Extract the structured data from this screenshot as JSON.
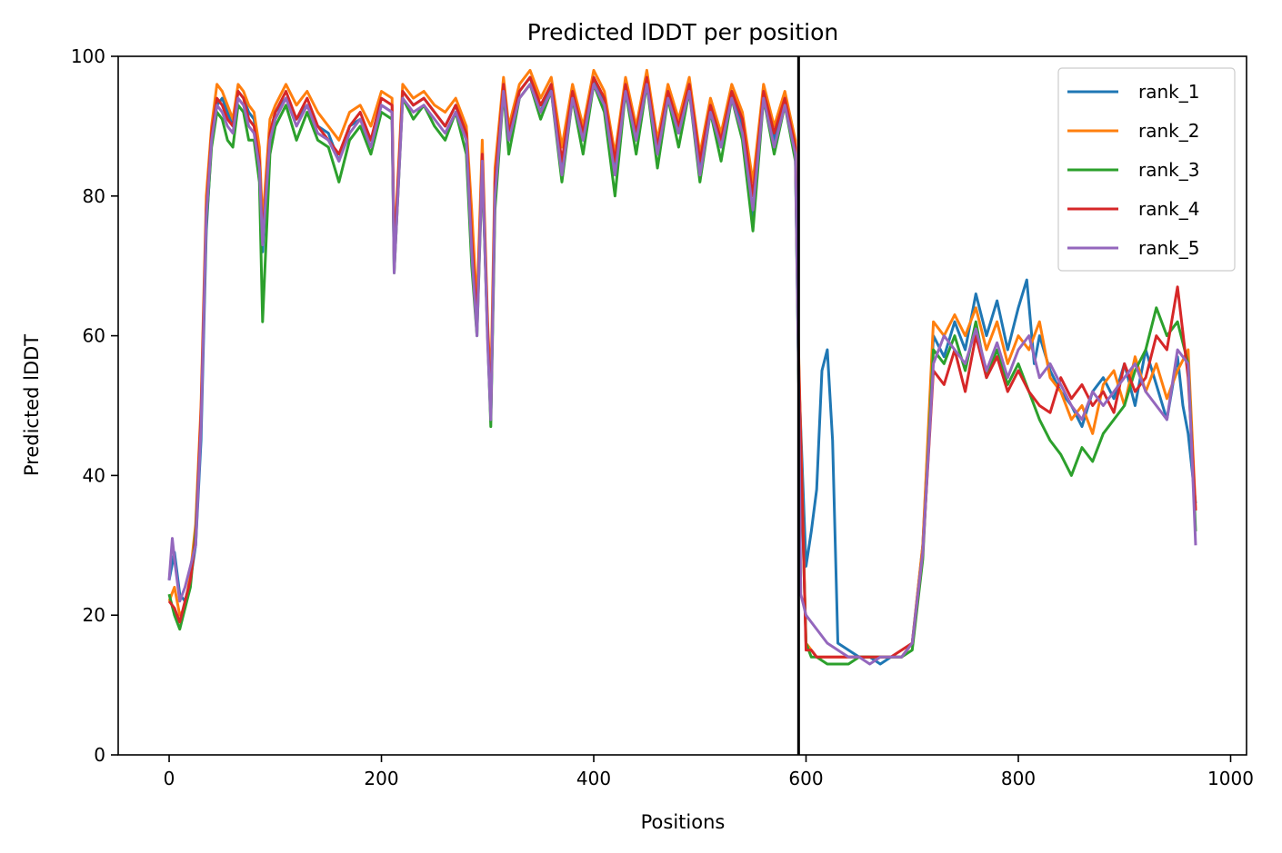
{
  "chart_data": {
    "type": "line",
    "title": "Predicted lDDT per position",
    "xlabel": "Positions",
    "ylabel": "Predicted lDDT",
    "xlim": [
      -48,
      1015
    ],
    "ylim": [
      0,
      100
    ],
    "xticks": [
      0,
      200,
      400,
      600,
      800,
      1000
    ],
    "yticks": [
      0,
      20,
      40,
      60,
      80,
      100
    ],
    "grid": false,
    "legend_position": "top-right",
    "chain_break": 593,
    "series": [
      {
        "name": "rank_1",
        "color": "#1f77b4",
        "x": [
          0,
          5,
          10,
          15,
          20,
          25,
          30,
          35,
          40,
          45,
          50,
          55,
          60,
          65,
          70,
          75,
          80,
          85,
          88,
          95,
          100,
          110,
          120,
          130,
          140,
          150,
          160,
          170,
          180,
          190,
          200,
          210,
          212,
          220,
          230,
          240,
          250,
          260,
          270,
          280,
          285,
          290,
          295,
          300,
          303,
          307,
          315,
          320,
          330,
          340,
          350,
          360,
          370,
          380,
          390,
          400,
          410,
          420,
          430,
          440,
          450,
          460,
          470,
          480,
          490,
          500,
          510,
          520,
          530,
          540,
          550,
          560,
          570,
          580,
          590,
          593,
          600,
          605,
          610,
          615,
          620,
          625,
          630,
          640,
          650,
          660,
          670,
          680,
          690,
          700,
          710,
          720,
          730,
          740,
          750,
          760,
          770,
          780,
          790,
          800,
          808,
          815,
          820,
          830,
          840,
          850,
          860,
          870,
          880,
          890,
          900,
          910,
          920,
          930,
          940,
          950,
          955,
          960,
          967
        ],
        "y": [
          25,
          29,
          23,
          22,
          25,
          30,
          45,
          75,
          88,
          93,
          94,
          92,
          90,
          95,
          94,
          92,
          91,
          85,
          72,
          89,
          92,
          94,
          91,
          93,
          90,
          89,
          85,
          90,
          91,
          88,
          93,
          92,
          70,
          95,
          93,
          94,
          92,
          90,
          93,
          88,
          73,
          62,
          85,
          60,
          48,
          80,
          96,
          88,
          95,
          97,
          92,
          96,
          84,
          95,
          88,
          97,
          93,
          84,
          96,
          88,
          97,
          86,
          95,
          89,
          96,
          84,
          93,
          87,
          95,
          90,
          77,
          95,
          88,
          94,
          86,
          55,
          27,
          32,
          38,
          55,
          58,
          45,
          16,
          15,
          14,
          14,
          13,
          14,
          14,
          16,
          30,
          60,
          57,
          62,
          58,
          66,
          60,
          65,
          58,
          64,
          68,
          56,
          60,
          55,
          52,
          50,
          47,
          52,
          54,
          51,
          56,
          50,
          58,
          53,
          48,
          57,
          50,
          46,
          36
        ]
      },
      {
        "name": "rank_2",
        "color": "#ff7f0e",
        "x": [
          0,
          5,
          10,
          15,
          20,
          25,
          30,
          35,
          40,
          45,
          50,
          55,
          60,
          65,
          70,
          75,
          80,
          85,
          88,
          95,
          100,
          110,
          120,
          130,
          140,
          150,
          160,
          170,
          180,
          190,
          200,
          210,
          212,
          220,
          230,
          240,
          250,
          260,
          270,
          280,
          285,
          290,
          295,
          300,
          303,
          307,
          315,
          320,
          330,
          340,
          350,
          360,
          370,
          380,
          390,
          400,
          410,
          420,
          430,
          440,
          450,
          460,
          470,
          480,
          490,
          500,
          510,
          520,
          530,
          540,
          550,
          560,
          570,
          580,
          590,
          593,
          600,
          605,
          610,
          620,
          630,
          640,
          650,
          660,
          670,
          680,
          690,
          700,
          710,
          720,
          730,
          740,
          750,
          760,
          770,
          780,
          790,
          800,
          810,
          820,
          830,
          840,
          850,
          860,
          870,
          880,
          890,
          900,
          910,
          920,
          930,
          940,
          950,
          960,
          967
        ],
        "y": [
          22,
          24,
          20,
          21,
          26,
          33,
          50,
          80,
          90,
          96,
          95,
          93,
          91,
          96,
          95,
          93,
          92,
          87,
          76,
          91,
          93,
          96,
          93,
          95,
          92,
          90,
          88,
          92,
          93,
          90,
          95,
          94,
          72,
          96,
          94,
          95,
          93,
          92,
          94,
          90,
          78,
          64,
          88,
          62,
          52,
          84,
          97,
          90,
          96,
          98,
          94,
          97,
          87,
          96,
          90,
          98,
          95,
          86,
          97,
          90,
          98,
          88,
          96,
          91,
          97,
          86,
          94,
          89,
          96,
          92,
          82,
          96,
          90,
          95,
          88,
          58,
          16,
          15,
          14,
          14,
          14,
          14,
          14,
          14,
          14,
          14,
          14,
          16,
          30,
          62,
          60,
          63,
          60,
          64,
          58,
          62,
          56,
          60,
          58,
          62,
          54,
          52,
          48,
          50,
          46,
          53,
          55,
          50,
          57,
          52,
          56,
          51,
          55,
          58,
          35
        ]
      },
      {
        "name": "rank_3",
        "color": "#2ca02c",
        "x": [
          0,
          5,
          10,
          15,
          20,
          25,
          30,
          35,
          40,
          45,
          50,
          55,
          60,
          65,
          70,
          75,
          80,
          85,
          88,
          95,
          100,
          110,
          120,
          130,
          140,
          150,
          160,
          170,
          180,
          190,
          200,
          210,
          212,
          220,
          230,
          240,
          250,
          260,
          270,
          280,
          285,
          290,
          295,
          300,
          303,
          307,
          315,
          320,
          330,
          340,
          350,
          360,
          370,
          380,
          390,
          400,
          410,
          420,
          430,
          440,
          450,
          460,
          470,
          480,
          490,
          500,
          510,
          520,
          530,
          540,
          550,
          560,
          570,
          580,
          590,
          593,
          600,
          605,
          610,
          620,
          630,
          640,
          650,
          660,
          670,
          680,
          690,
          700,
          710,
          720,
          730,
          740,
          750,
          760,
          770,
          780,
          790,
          800,
          810,
          820,
          830,
          840,
          850,
          860,
          870,
          880,
          890,
          900,
          910,
          920,
          930,
          940,
          950,
          960,
          967
        ],
        "y": [
          23,
          20,
          18,
          21,
          24,
          32,
          48,
          76,
          87,
          92,
          91,
          88,
          87,
          93,
          92,
          88,
          88,
          82,
          62,
          86,
          90,
          93,
          88,
          92,
          88,
          87,
          82,
          88,
          90,
          86,
          92,
          91,
          69,
          94,
          91,
          93,
          90,
          88,
          92,
          86,
          70,
          60,
          84,
          60,
          47,
          78,
          95,
          86,
          94,
          96,
          91,
          95,
          82,
          94,
          86,
          96,
          92,
          80,
          95,
          86,
          96,
          84,
          94,
          87,
          95,
          82,
          92,
          85,
          94,
          88,
          75,
          94,
          86,
          93,
          85,
          54,
          16,
          14,
          14,
          13,
          13,
          13,
          14,
          14,
          14,
          14,
          14,
          15,
          28,
          58,
          56,
          60,
          55,
          62,
          54,
          58,
          53,
          56,
          52,
          48,
          45,
          43,
          40,
          44,
          42,
          46,
          48,
          50,
          55,
          58,
          64,
          60,
          62,
          56,
          32
        ]
      },
      {
        "name": "rank_4",
        "color": "#d62728",
        "x": [
          0,
          5,
          10,
          15,
          20,
          25,
          30,
          35,
          40,
          45,
          50,
          55,
          60,
          65,
          70,
          75,
          80,
          85,
          88,
          95,
          100,
          110,
          120,
          130,
          140,
          150,
          160,
          170,
          180,
          190,
          200,
          210,
          212,
          220,
          230,
          240,
          250,
          260,
          270,
          280,
          285,
          290,
          295,
          300,
          303,
          307,
          315,
          320,
          330,
          340,
          350,
          360,
          370,
          380,
          390,
          400,
          410,
          420,
          430,
          440,
          450,
          460,
          470,
          480,
          490,
          500,
          510,
          520,
          530,
          540,
          550,
          560,
          570,
          580,
          590,
          593,
          600,
          605,
          610,
          620,
          630,
          640,
          650,
          660,
          670,
          680,
          690,
          700,
          710,
          720,
          730,
          740,
          750,
          760,
          770,
          780,
          790,
          800,
          810,
          820,
          830,
          840,
          850,
          860,
          870,
          880,
          890,
          900,
          910,
          920,
          930,
          940,
          950,
          960,
          967
        ],
        "y": [
          22,
          21,
          19,
          22,
          25,
          31,
          49,
          78,
          89,
          94,
          93,
          91,
          90,
          95,
          94,
          91,
          90,
          85,
          74,
          89,
          92,
          95,
          91,
          94,
          90,
          88,
          86,
          90,
          92,
          88,
          94,
          93,
          71,
          95,
          93,
          94,
          92,
          90,
          93,
          89,
          74,
          62,
          86,
          61,
          49,
          82,
          96,
          89,
          95,
          97,
          93,
          96,
          85,
          95,
          89,
          97,
          94,
          85,
          96,
          89,
          97,
          87,
          95,
          90,
          96,
          85,
          93,
          88,
          95,
          91,
          80,
          95,
          89,
          94,
          87,
          57,
          15,
          15,
          14,
          14,
          14,
          14,
          14,
          14,
          14,
          14,
          15,
          16,
          29,
          55,
          53,
          58,
          52,
          60,
          54,
          57,
          52,
          55,
          52,
          50,
          49,
          54,
          51,
          53,
          50,
          52,
          49,
          56,
          52,
          54,
          60,
          58,
          67,
          54,
          35
        ]
      },
      {
        "name": "rank_5",
        "color": "#9467bd",
        "x": [
          0,
          3,
          5,
          10,
          15,
          20,
          25,
          30,
          35,
          40,
          45,
          50,
          55,
          60,
          65,
          70,
          75,
          80,
          85,
          88,
          95,
          100,
          110,
          120,
          130,
          140,
          150,
          160,
          170,
          180,
          190,
          200,
          210,
          212,
          220,
          230,
          240,
          250,
          260,
          270,
          280,
          285,
          290,
          295,
          300,
          303,
          307,
          315,
          320,
          330,
          340,
          350,
          360,
          370,
          380,
          390,
          400,
          410,
          420,
          430,
          440,
          450,
          460,
          470,
          480,
          490,
          500,
          510,
          520,
          530,
          540,
          550,
          560,
          570,
          580,
          590,
          593,
          595,
          600,
          605,
          610,
          620,
          630,
          640,
          650,
          660,
          670,
          680,
          690,
          700,
          710,
          720,
          730,
          740,
          750,
          760,
          770,
          780,
          790,
          800,
          810,
          820,
          830,
          840,
          850,
          860,
          870,
          880,
          890,
          900,
          910,
          920,
          930,
          940,
          950,
          960,
          967
        ],
        "y": [
          25,
          31,
          28,
          22,
          24,
          27,
          30,
          47,
          77,
          88,
          93,
          92,
          90,
          89,
          94,
          93,
          90,
          89,
          84,
          73,
          88,
          91,
          94,
          90,
          93,
          89,
          88,
          85,
          89,
          91,
          87,
          93,
          92,
          69,
          94,
          92,
          93,
          91,
          89,
          92,
          88,
          72,
          60,
          85,
          59,
          48,
          80,
          95,
          88,
          94,
          96,
          92,
          95,
          83,
          94,
          88,
          96,
          93,
          83,
          95,
          88,
          96,
          86,
          94,
          89,
          95,
          83,
          92,
          87,
          94,
          89,
          78,
          94,
          87,
          93,
          86,
          55,
          23,
          20,
          19,
          18,
          16,
          15,
          14,
          14,
          13,
          14,
          14,
          14,
          16,
          29,
          56,
          60,
          58,
          56,
          61,
          55,
          59,
          54,
          58,
          60,
          54,
          56,
          53,
          50,
          48,
          52,
          50,
          52,
          54,
          56,
          52,
          50,
          48,
          58,
          56,
          30
        ]
      }
    ]
  }
}
